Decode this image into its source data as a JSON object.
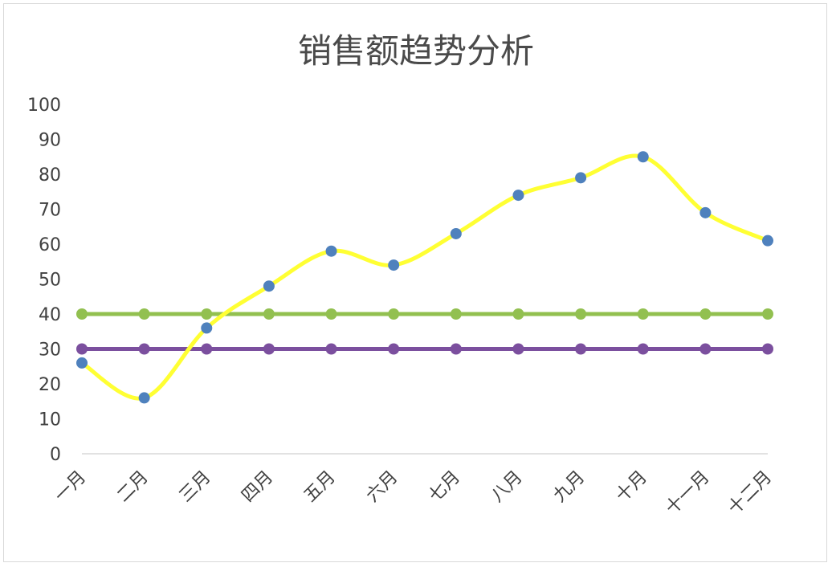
{
  "chart_data": {
    "type": "line",
    "title": "销售额趋势分析",
    "xlabel": "",
    "ylabel": "",
    "categories": [
      "一月",
      "二月",
      "三月",
      "四月",
      "五月",
      "六月",
      "七月",
      "八月",
      "九月",
      "十月",
      "十一月",
      "十二月"
    ],
    "ylim": [
      0,
      100
    ],
    "yticks": [
      0,
      10,
      20,
      30,
      40,
      50,
      60,
      70,
      80,
      90,
      100
    ],
    "grid": false,
    "legend": "none",
    "series": [
      {
        "values": [
          26,
          16,
          36,
          48,
          58,
          54,
          63,
          74,
          79,
          85,
          69,
          61
        ],
        "line_color": "#ffff33",
        "marker_color": "#4f81bd",
        "smooth": true
      },
      {
        "values": [
          40,
          40,
          40,
          40,
          40,
          40,
          40,
          40,
          40,
          40,
          40,
          40
        ],
        "line_color": "#92c050",
        "marker_color": "#92c050",
        "smooth": false
      },
      {
        "values": [
          30,
          30,
          30,
          30,
          30,
          30,
          30,
          30,
          30,
          30,
          30,
          30
        ],
        "line_color": "#7b4f9e",
        "marker_color": "#7b4f9e",
        "smooth": false
      }
    ]
  }
}
